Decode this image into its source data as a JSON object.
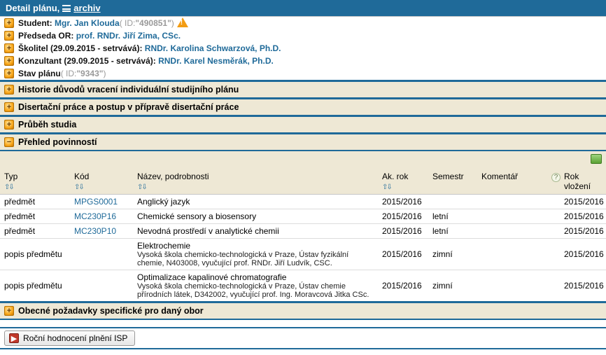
{
  "header": {
    "title_prefix": "Detail plánu, ",
    "archive_link": "archiv"
  },
  "details": {
    "student": {
      "label": "Student:",
      "name": "Mgr. Jan Klouda",
      "id_prefix": " ( ID: ",
      "id": "\"490851\"",
      "id_suffix": " )"
    },
    "chair": {
      "label": "Předseda OR:",
      "name": "prof. RNDr. Jiří Zima, CSc."
    },
    "tutor": {
      "label": "Školitel (29.09.2015 - setrvává):",
      "name": "RNDr. Karolina Schwarzová, Ph.D."
    },
    "consultant": {
      "label": "Konzultant (29.09.2015 - setrvává):",
      "name": "RNDr. Karel Nesměrák, Ph.D."
    },
    "state": {
      "label": "Stav plánu",
      "id_prefix": " ( ID: ",
      "id": "\"9343\"",
      "id_suffix": " )"
    }
  },
  "sections": {
    "history": "Historie důvodů vracení individuální studijního plánu",
    "thesis": "Disertační práce a postup v přípravě disertační práce",
    "progress": "Průběh studia",
    "duties": "Přehled povinností",
    "generic": "Obecné požadavky specifické pro daný obor"
  },
  "table": {
    "columns": {
      "type": "Typ",
      "code": "Kód",
      "name": "Název, podrobnosti",
      "year": "Ak. rok",
      "semester": "Semestr",
      "comment": "Komentář",
      "insert": "Rok vložení"
    },
    "rows": [
      {
        "type": "předmět",
        "code": "MPGS0001",
        "code_link": true,
        "name": "Anglický jazyk",
        "sub": "",
        "year": "2015/2016",
        "semester": "",
        "comment": "",
        "insert": "2015/2016"
      },
      {
        "type": "předmět",
        "code": "MC230P16",
        "code_link": true,
        "name": "Chemické sensory a biosensory",
        "sub": "",
        "year": "2015/2016",
        "semester": "letní",
        "comment": "",
        "insert": "2015/2016"
      },
      {
        "type": "předmět",
        "code": "MC230P10",
        "code_link": true,
        "name": "Nevodná prostředí v analytické chemii",
        "sub": "",
        "year": "2015/2016",
        "semester": "letní",
        "comment": "",
        "insert": "2015/2016"
      },
      {
        "type": "popis předmětu",
        "code": "",
        "code_link": false,
        "name": "Elektrochemie",
        "sub": "Vysoká škola chemicko-technologická v Praze, Ústav fyzikální chemie, N403008, vyučující prof. RNDr. Jiří Ludvík, CSC.",
        "year": "2015/2016",
        "semester": "zimní",
        "comment": "",
        "insert": "2015/2016"
      },
      {
        "type": "popis předmětu",
        "code": "",
        "code_link": false,
        "name": "Optimalizace kapalinové chromatografie",
        "sub": "Vysoká škola chemicko-technologická v Praze, Ústav chemie přírodních látek, D342002, vyučující prof. Ing. Moravcová Jitka CSc.",
        "year": "2015/2016",
        "semester": "zimní",
        "comment": "",
        "insert": "2015/2016"
      }
    ]
  },
  "footer_button": "Roční hodnocení plnění ISP"
}
